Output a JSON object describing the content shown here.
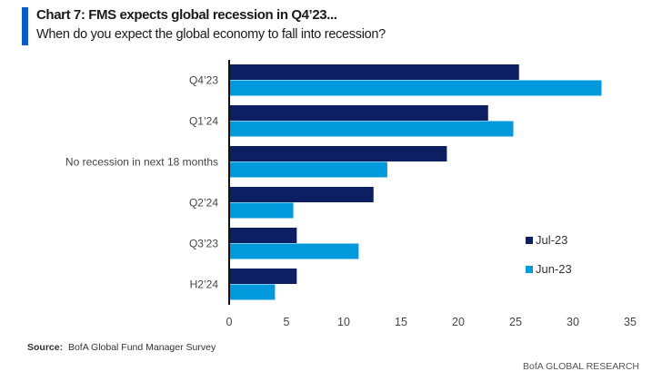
{
  "header": {
    "title": "Chart 7: FMS expects global recession in Q4’23...",
    "subtitle": "When do you expect the global economy to fall into recession?"
  },
  "footer": {
    "source_label": "Source:",
    "source_text": "BofA Global Fund Manager Survey",
    "brand": "BofA GLOBAL RESEARCH"
  },
  "colors": {
    "accent_bar": "#0a5bc4",
    "series_jul": "#0d1f63",
    "series_jun": "#0099dc"
  },
  "chart_data": {
    "type": "bar",
    "orientation": "horizontal",
    "title": "Chart 7: FMS expects global recession in Q4’23...",
    "subtitle": "When do you expect the global economy to fall into recession?",
    "categories": [
      "Q4’23",
      "Q1’24",
      "No recession in next 18 months",
      "Q2’24",
      "Q3’23",
      "H2’24"
    ],
    "series": [
      {
        "name": "Jul-23",
        "color": "#0d1f63",
        "values": [
          25.3,
          22.6,
          19.0,
          12.6,
          5.9,
          5.9
        ]
      },
      {
        "name": "Jun-23",
        "color": "#0099dc",
        "values": [
          32.5,
          24.8,
          13.8,
          5.6,
          11.3,
          4.0
        ]
      }
    ],
    "xlabel": "",
    "ylabel": "",
    "xlim": [
      0,
      35
    ],
    "xticks": [
      0,
      5,
      10,
      15,
      20,
      25,
      30,
      35
    ],
    "grid": false,
    "legend": {
      "position": "right",
      "entries": [
        "Jul-23",
        "Jun-23"
      ]
    }
  }
}
